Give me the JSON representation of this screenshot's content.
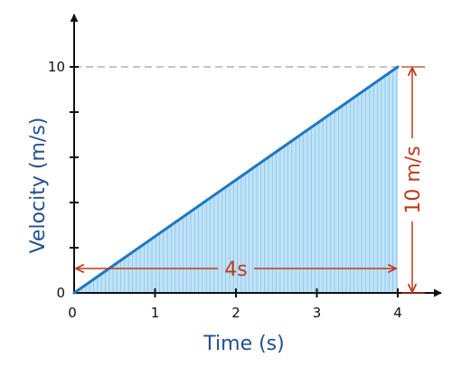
{
  "chart_data": {
    "type": "line",
    "xlabel": "Time (s)",
    "ylabel": "Velocity (m/s)",
    "xlim": [
      0,
      4
    ],
    "ylim": [
      0,
      10
    ],
    "x_ticks": [
      "0",
      "1",
      "2",
      "3",
      "4"
    ],
    "y_ticks": [
      "0",
      "10"
    ],
    "series": [
      {
        "x": [
          0,
          4
        ],
        "y": [
          0,
          10
        ]
      }
    ],
    "shaded_area_under_line": true,
    "grid": false,
    "annotations": [
      {
        "text": "4s",
        "kind": "horizontal-dimension",
        "from_x": 0,
        "to_x": 4,
        "at_y": 1
      },
      {
        "text": "10 m/s",
        "kind": "vertical-dimension",
        "from_y": 0,
        "to_y": 10,
        "at_x": 4
      }
    ],
    "colors": {
      "line": "#2077c0",
      "fill": "#bfe3f7",
      "hatch": "#8cc3e6",
      "axis": "#111111",
      "axis_title": "#24508f",
      "annotation": "#c0391b",
      "guide": "#888888"
    }
  }
}
